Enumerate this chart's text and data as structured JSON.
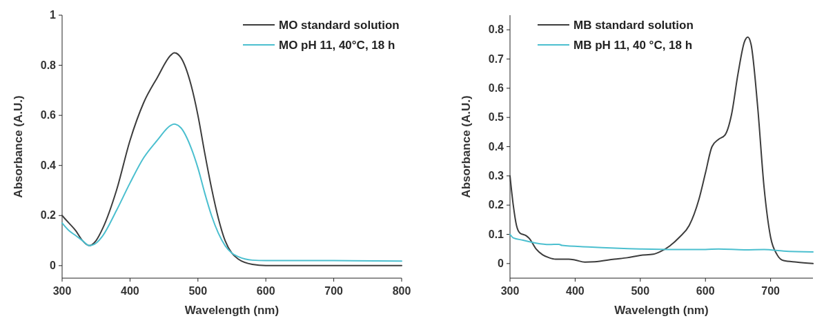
{
  "chart_data": [
    {
      "type": "line",
      "xlabel": "Wavelength (nm)",
      "ylabel": "Absorbance (A.U.)",
      "xlim": [
        300,
        800
      ],
      "xticks": [
        300,
        400,
        500,
        600,
        700,
        800
      ],
      "ylim": [
        -0.05,
        1
      ],
      "yticks": [
        0,
        0.2,
        0.4,
        0.6,
        0.8,
        1
      ],
      "grid": false,
      "legend": "top right",
      "marker": "none",
      "line_style": "solid",
      "series": [
        {
          "name": "MO standard solution",
          "color": "#3c3c3c",
          "x": [
            300,
            310,
            320,
            330,
            340,
            350,
            360,
            380,
            400,
            420,
            440,
            460,
            465,
            475,
            490,
            500,
            510,
            520,
            530,
            540,
            550,
            560,
            580,
            600,
            700,
            800
          ],
          "values": [
            0.2,
            0.17,
            0.14,
            0.1,
            0.08,
            0.1,
            0.15,
            0.3,
            0.5,
            0.65,
            0.75,
            0.84,
            0.85,
            0.83,
            0.72,
            0.6,
            0.45,
            0.31,
            0.19,
            0.1,
            0.05,
            0.025,
            0.005,
            0,
            0,
            0
          ]
        },
        {
          "name": "MO pH 11, 40°C, 18 h",
          "color": "#4bbfcf",
          "x": [
            300,
            310,
            320,
            330,
            340,
            350,
            360,
            380,
            400,
            420,
            440,
            460,
            465,
            475,
            490,
            500,
            510,
            520,
            530,
            540,
            550,
            560,
            580,
            600,
            700,
            800
          ],
          "values": [
            0.17,
            0.14,
            0.12,
            0.1,
            0.08,
            0.09,
            0.12,
            0.22,
            0.33,
            0.43,
            0.5,
            0.56,
            0.565,
            0.55,
            0.47,
            0.39,
            0.29,
            0.2,
            0.13,
            0.08,
            0.05,
            0.035,
            0.022,
            0.02,
            0.02,
            0.018
          ]
        }
      ]
    },
    {
      "type": "line",
      "xlabel": "Wavelength (nm)",
      "ylabel": "Absorbance (A.U.)",
      "xlim": [
        300,
        765
      ],
      "xticks": [
        300,
        400,
        500,
        600,
        700
      ],
      "ylim": [
        -0.05,
        0.85
      ],
      "yticks": [
        0,
        0.1,
        0.2,
        0.3,
        0.4,
        0.5,
        0.6,
        0.7,
        0.8
      ],
      "grid": false,
      "legend": "top left",
      "marker": "none",
      "line_style": "solid",
      "series": [
        {
          "name": "MB standard solution",
          "color": "#3c3c3c",
          "x": [
            300,
            305,
            310,
            315,
            325,
            330,
            340,
            350,
            360,
            370,
            390,
            400,
            415,
            430,
            460,
            480,
            500,
            520,
            530,
            545,
            560,
            575,
            590,
            600,
            610,
            620,
            630,
            640,
            650,
            660,
            665,
            670,
            680,
            690,
            700,
            710,
            720,
            740,
            765
          ],
          "values": [
            0.3,
            0.2,
            0.13,
            0.105,
            0.095,
            0.085,
            0.05,
            0.03,
            0.02,
            0.015,
            0.015,
            0.012,
            0.005,
            0.006,
            0.015,
            0.02,
            0.028,
            0.032,
            0.04,
            0.06,
            0.09,
            0.13,
            0.22,
            0.31,
            0.4,
            0.425,
            0.44,
            0.51,
            0.65,
            0.76,
            0.775,
            0.75,
            0.54,
            0.26,
            0.09,
            0.03,
            0.01,
            0.005,
            0
          ]
        },
        {
          "name": "MB pH 11, 40 °C, 18 h",
          "color": "#4bbfcf",
          "x": [
            300,
            305,
            320,
            340,
            360,
            375,
            380,
            420,
            500,
            550,
            600,
            620,
            660,
            690,
            720,
            765
          ],
          "values": [
            0.1,
            0.088,
            0.08,
            0.07,
            0.065,
            0.066,
            0.062,
            0.057,
            0.05,
            0.048,
            0.048,
            0.05,
            0.047,
            0.048,
            0.043,
            0.04
          ]
        }
      ]
    }
  ]
}
